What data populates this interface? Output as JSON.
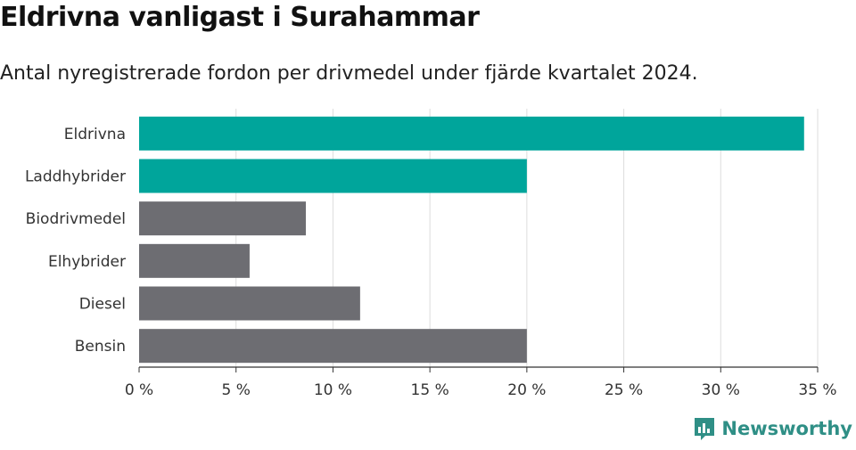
{
  "title": "Eldrivna vanligast i Surahammar",
  "subtitle": "Antal nyregistrerade fordon per drivmedel under fjärde kvartalet 2024.",
  "brand": "Newsworthy",
  "colors": {
    "highlight": "#00a59b",
    "default": "#6d6d72",
    "grid": "#dddddd",
    "axis": "#333333",
    "brand": "#2f8f86"
  },
  "chart_data": {
    "type": "bar",
    "orientation": "horizontal",
    "categories": [
      "Eldrivna",
      "Laddhybrider",
      "Biodrivmedel",
      "Elhybrider",
      "Diesel",
      "Bensin"
    ],
    "values": [
      34.3,
      20.0,
      8.6,
      5.7,
      11.4,
      20.0
    ],
    "highlighted": [
      true,
      true,
      false,
      false,
      false,
      false
    ],
    "xlim": [
      0,
      35
    ],
    "xticks": [
      0,
      5,
      10,
      15,
      20,
      25,
      30,
      35
    ],
    "xtick_labels": [
      "0 %",
      "5 %",
      "10 %",
      "15 %",
      "20 %",
      "25 %",
      "30 %",
      "35 %"
    ],
    "grid": true
  }
}
